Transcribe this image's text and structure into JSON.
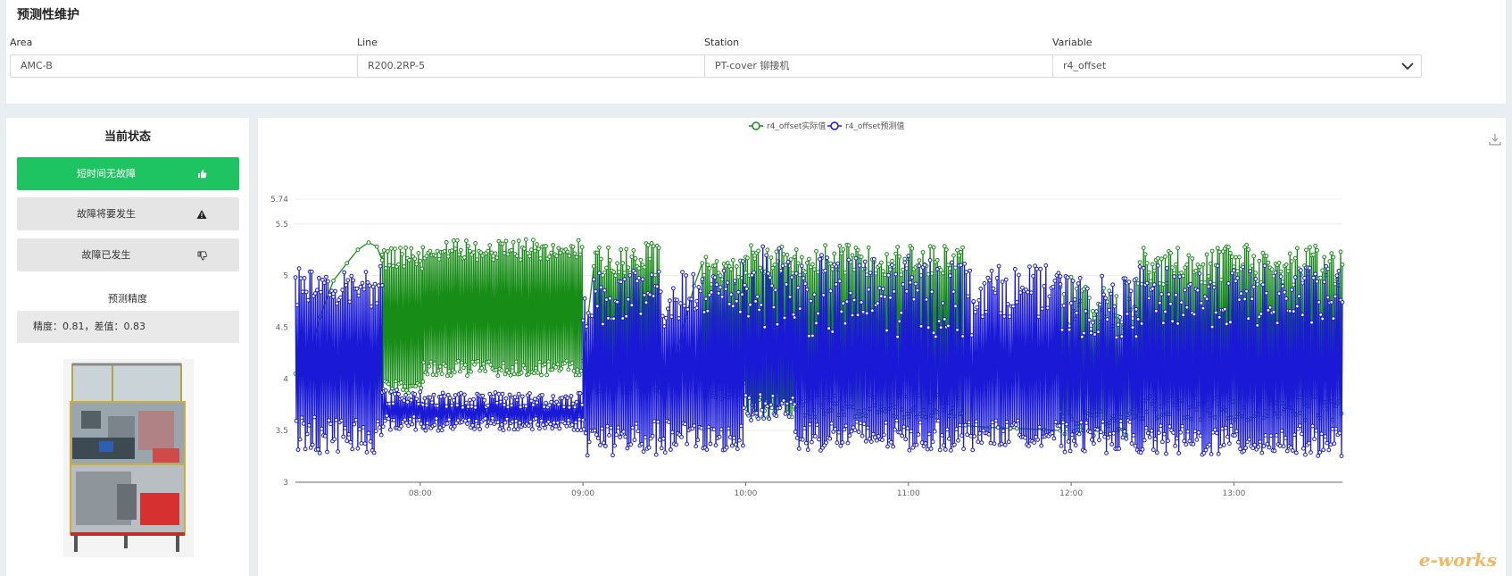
{
  "page_title": "预测性维护",
  "filters": [
    {
      "label": "Area",
      "value": "AMC-B"
    },
    {
      "label": "Line",
      "value": "R200.2RP-5"
    },
    {
      "label": "Station",
      "value": "PT-cover 铆接机"
    },
    {
      "label": "Variable",
      "value": "r4_offset"
    }
  ],
  "status": {
    "title": "当前状态",
    "buttons": [
      {
        "label": "短时间无故障",
        "icon": "thumbs-up-icon",
        "active": true
      },
      {
        "label": "故障将要发生",
        "icon": "warning-icon",
        "active": false
      },
      {
        "label": "故障已发生",
        "icon": "thumbs-down-icon",
        "active": false
      }
    ],
    "accuracy_title": "预测精度",
    "accuracy_text": "精度：0.81，差值：0.83",
    "image": "machine-3d-model"
  },
  "watermark": "e-works",
  "colors": {
    "actual": "#178c17",
    "predicted": "#1a1ad6",
    "active_status": "#1ec462"
  },
  "chart_data": {
    "type": "line",
    "legend_position": "top-center",
    "grid": true,
    "xlim": [
      "07:14",
      "13:40"
    ],
    "ylim": [
      3,
      5.74
    ],
    "y_ticks": [
      "3",
      "3.5",
      "4",
      "4.5",
      "5",
      "5.5",
      "5.74"
    ],
    "x_ticks": [
      "08:00",
      "09:00",
      "10:00",
      "11:00",
      "12:00",
      "13:00"
    ],
    "series": [
      {
        "name": "r4_offset实际值",
        "segments": [
          {
            "x": [
              "07:14",
              "07:18",
              "07:23",
              "07:28",
              "07:33",
              "07:37",
              "07:41",
              "07:44",
              "07:46"
            ],
            "y": [
              4.05,
              4.1,
              4.6,
              4.95,
              5.12,
              5.25,
              5.32,
              5.28,
              5.15
            ],
            "kind": "smooth"
          },
          {
            "x_range": [
              "07:46",
              "08:01"
            ],
            "low": [
              3.85,
              4.0
            ],
            "high": [
              5.05,
              5.3
            ]
          },
          {
            "x_range": [
              "08:01",
              "09:00"
            ],
            "low": [
              4.03,
              4.18
            ],
            "high": [
              5.15,
              5.35
            ]
          },
          {
            "x_range": [
              "09:04",
              "09:28"
            ],
            "low": [
              3.85,
              4.1
            ],
            "high": [
              5.0,
              5.32
            ]
          },
          {
            "x": [
              "09:28",
              "09:31",
              "09:34",
              "09:38",
              "09:41",
              "09:44"
            ],
            "y": [
              3.88,
              3.95,
              4.2,
              4.6,
              4.9,
              5.12
            ],
            "kind": "smooth"
          },
          {
            "x_range": [
              "09:44",
              "10:00"
            ],
            "low": [
              3.8,
              4.0
            ],
            "high": [
              4.9,
              5.2
            ]
          },
          {
            "x_range": [
              "10:00",
              "11:20"
            ],
            "low": [
              3.62,
              3.85
            ],
            "high": [
              5.0,
              5.3
            ]
          },
          {
            "x": [
              "11:20",
              "11:30",
              "11:40",
              "11:50",
              "11:56"
            ],
            "y": [
              3.55,
              3.53,
              3.52,
              3.51,
              3.5
            ],
            "kind": "linear"
          },
          {
            "x_range": [
              "11:56",
              "12:24"
            ],
            "low": [
              3.45,
              3.7
            ],
            "high": [
              4.4,
              5.0
            ]
          },
          {
            "x_range": [
              "12:24",
              "13:40"
            ],
            "low": [
              3.6,
              3.85
            ],
            "high": [
              4.9,
              5.3
            ]
          }
        ]
      },
      {
        "name": "r4_offset预测值",
        "segments": [
          {
            "x_range": [
              "07:14",
              "07:46"
            ],
            "low": [
              3.28,
              3.65
            ],
            "high": [
              4.7,
              5.1
            ]
          },
          {
            "x_range": [
              "07:46",
              "08:01"
            ],
            "low": [
              3.5,
              3.65
            ],
            "high": [
              3.75,
              3.9
            ]
          },
          {
            "x_range": [
              "08:01",
              "09:00"
            ],
            "low": [
              3.5,
              3.62
            ],
            "high": [
              3.72,
              3.87
            ]
          },
          {
            "x_range": [
              "09:00",
              "09:42"
            ],
            "low": [
              3.25,
              3.6
            ],
            "high": [
              4.5,
              5.05
            ]
          },
          {
            "x_range": [
              "09:42",
              "09:59"
            ],
            "low": [
              3.3,
              3.55
            ],
            "high": [
              4.6,
              5.1
            ]
          },
          {
            "x_range": [
              "09:59",
              "10:18"
            ],
            "low": [
              3.6,
              3.85
            ],
            "high": [
              4.5,
              5.3
            ]
          },
          {
            "x_range": [
              "10:18",
              "11:24"
            ],
            "low": [
              3.3,
              3.6
            ],
            "high": [
              4.4,
              5.2
            ]
          },
          {
            "x_range": [
              "11:24",
              "11:56"
            ],
            "low": [
              3.35,
              3.6
            ],
            "high": [
              4.6,
              5.1
            ]
          },
          {
            "x_range": [
              "11:56",
              "12:24"
            ],
            "low": [
              3.28,
              3.6
            ],
            "high": [
              4.4,
              5.0
            ]
          },
          {
            "x_range": [
              "12:24",
              "13:40"
            ],
            "low": [
              3.25,
              3.55
            ],
            "high": [
              4.5,
              5.1
            ]
          }
        ]
      }
    ]
  }
}
